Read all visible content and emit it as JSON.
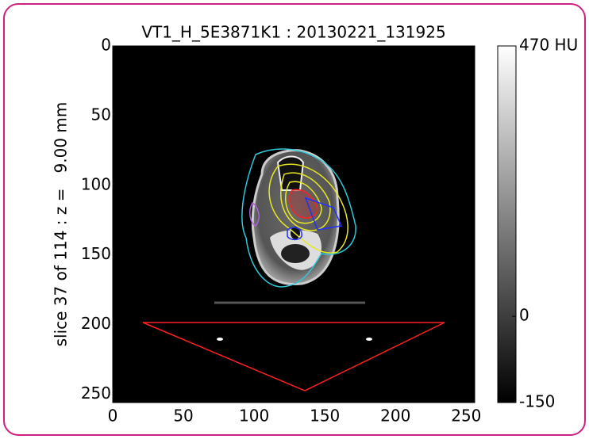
{
  "chart_data": {
    "type": "image",
    "title": "VT1_H_5E3871K1 : 20130221_131925",
    "ylabel": "slice 37 of 114 : z =   9.00 mm",
    "xlim": [
      0,
      256
    ],
    "ylim": [
      256,
      0
    ],
    "xticks": [
      0,
      50,
      100,
      150,
      200,
      250
    ],
    "yticks": [
      0,
      50,
      100,
      150,
      200,
      250
    ],
    "colorbar": {
      "clim": [
        -150,
        470
      ],
      "ticks": [
        {
          "value": 470,
          "label": "470 HU"
        },
        0,
        -150
      ]
    }
  }
}
